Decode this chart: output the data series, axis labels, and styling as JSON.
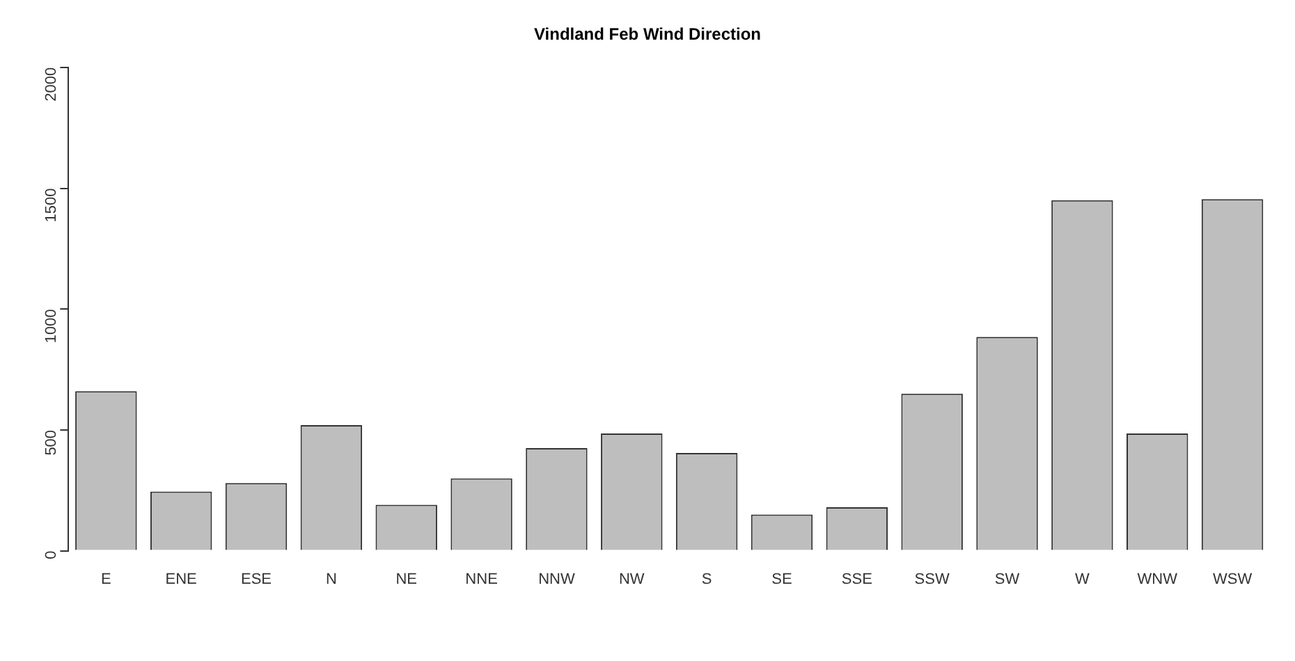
{
  "chart_data": {
    "type": "bar",
    "title": "Vindland Feb Wind Direction",
    "categories": [
      "E",
      "ENE",
      "ESE",
      "N",
      "NE",
      "NNE",
      "NNW",
      "NW",
      "S",
      "SE",
      "SSE",
      "SSW",
      "SW",
      "W",
      "WNW",
      "WSW"
    ],
    "values": [
      660,
      245,
      280,
      520,
      190,
      300,
      425,
      485,
      405,
      150,
      180,
      650,
      885,
      1450,
      485,
      1455
    ],
    "color": "#bebebe",
    "ylim": [
      0,
      2000
    ],
    "yticks": [
      0,
      500,
      1000,
      1500,
      2000
    ],
    "grid": false,
    "legend": false
  }
}
